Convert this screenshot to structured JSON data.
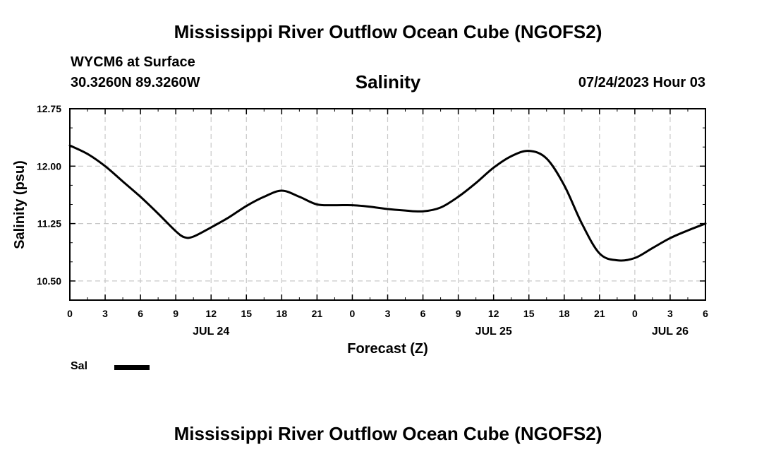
{
  "header": {
    "title": "Mississippi River Outflow Ocean Cube (NGOFS2)",
    "station": "WYCM6 at Surface",
    "coords": "30.3260N  89.3260W",
    "variable": "Salinity",
    "timestamp": "07/24/2023 Hour 03"
  },
  "footer": {
    "title": "Mississippi River Outflow Ocean Cube (NGOFS2)"
  },
  "legend": {
    "label": "Sal",
    "color": "#000000"
  },
  "chart_data": {
    "type": "line",
    "title": "Salinity",
    "xlabel": "Forecast (Z)",
    "ylabel": "Salinity (psu)",
    "xlim": [
      0,
      54
    ],
    "ylim": [
      10.25,
      12.75
    ],
    "x_ticks": [
      0,
      3,
      6,
      9,
      12,
      15,
      18,
      21,
      24,
      27,
      30,
      33,
      36,
      39,
      42,
      45,
      48,
      51,
      54
    ],
    "x_tick_labels": [
      "0",
      "3",
      "6",
      "9",
      "12",
      "15",
      "18",
      "21",
      "0",
      "3",
      "6",
      "9",
      "12",
      "15",
      "18",
      "21",
      "0",
      "3",
      "6"
    ],
    "date_labels": [
      {
        "x": 12,
        "label": "JUL 24"
      },
      {
        "x": 36,
        "label": "JUL 25"
      },
      {
        "x": 51,
        "label": "JUL 26"
      }
    ],
    "y_ticks": [
      10.5,
      11.25,
      12.0,
      12.75
    ],
    "y_tick_labels": [
      "10.50",
      "11.25",
      "12.00",
      "12.75"
    ],
    "grid": true,
    "series": [
      {
        "name": "Sal",
        "x": [
          0,
          1.5,
          3,
          4.5,
          6,
          7.5,
          9,
          9.75,
          10.5,
          12,
          13.5,
          15,
          16.5,
          18,
          19.5,
          21,
          22.5,
          24,
          25.5,
          27,
          28.5,
          30,
          31.5,
          33,
          34.5,
          36,
          37.5,
          39,
          40.5,
          42,
          43.5,
          45,
          46.5,
          48,
          49.5,
          51,
          52.5,
          54
        ],
        "values": [
          12.27,
          12.16,
          12.0,
          11.8,
          11.6,
          11.38,
          11.15,
          11.07,
          11.08,
          11.2,
          11.33,
          11.48,
          11.6,
          11.68,
          11.6,
          11.5,
          11.49,
          11.49,
          11.47,
          11.44,
          11.42,
          11.41,
          11.46,
          11.6,
          11.78,
          11.98,
          12.13,
          12.2,
          12.1,
          11.75,
          11.25,
          10.86,
          10.77,
          10.8,
          10.93,
          11.06,
          11.16,
          11.25
        ]
      }
    ]
  }
}
